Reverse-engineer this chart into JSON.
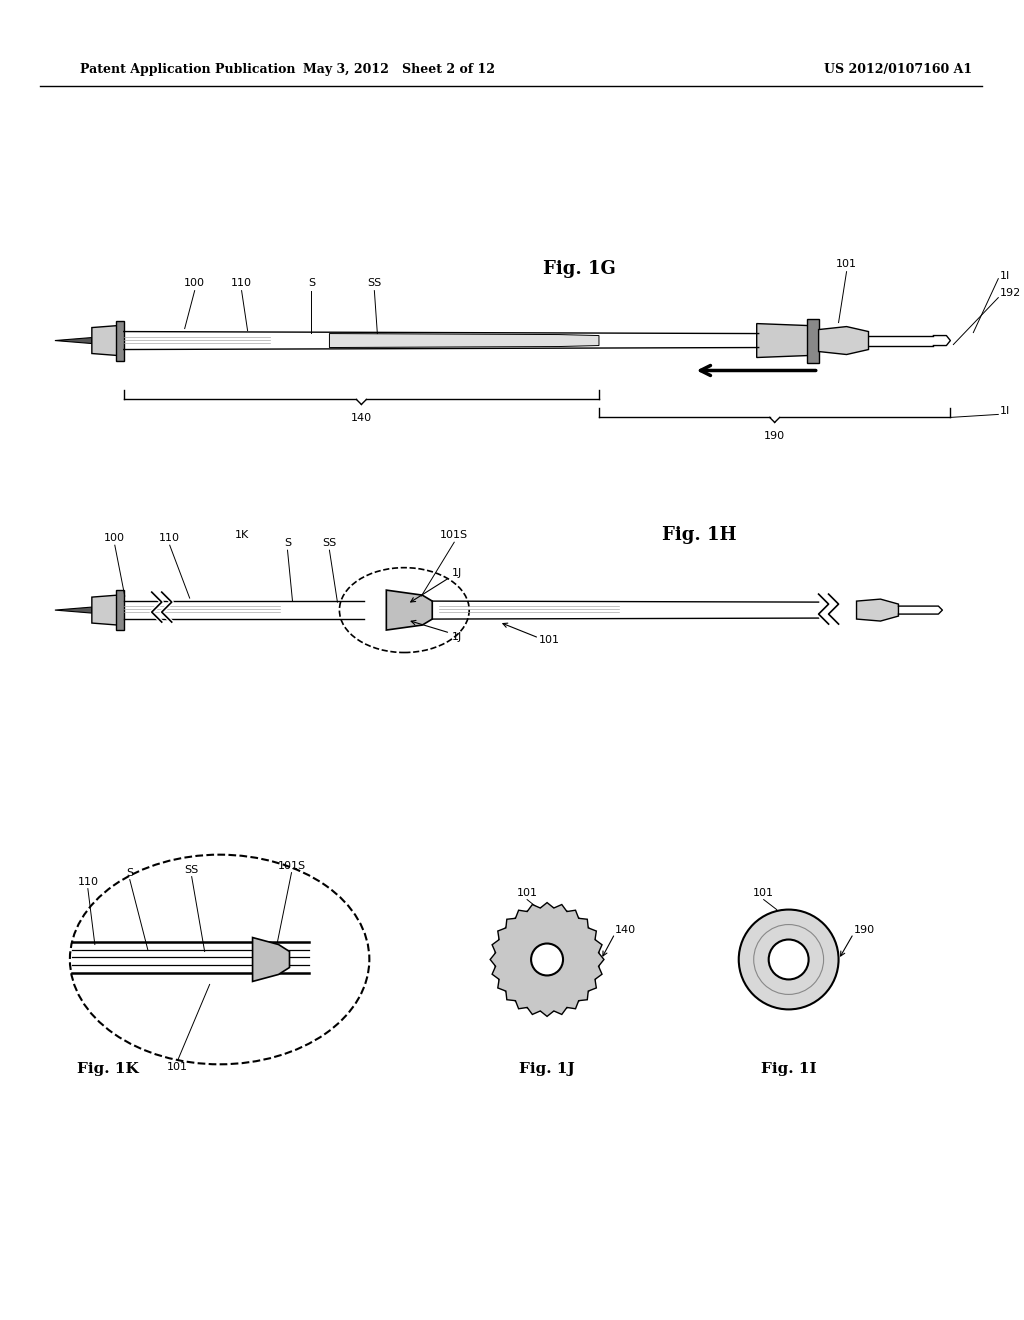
{
  "bg_color": "#ffffff",
  "text_color": "#000000",
  "header_left": "Patent Application Publication",
  "header_mid": "May 3, 2012   Sheet 2 of 12",
  "header_right": "US 2012/0107160 A1",
  "fig1g_label": "Fig. 1G",
  "fig1h_label": "Fig. 1H",
  "fig1k_label": "Fig. 1K",
  "fig1j_label": "Fig. 1J",
  "fig1i_label": "Fig. 1I"
}
